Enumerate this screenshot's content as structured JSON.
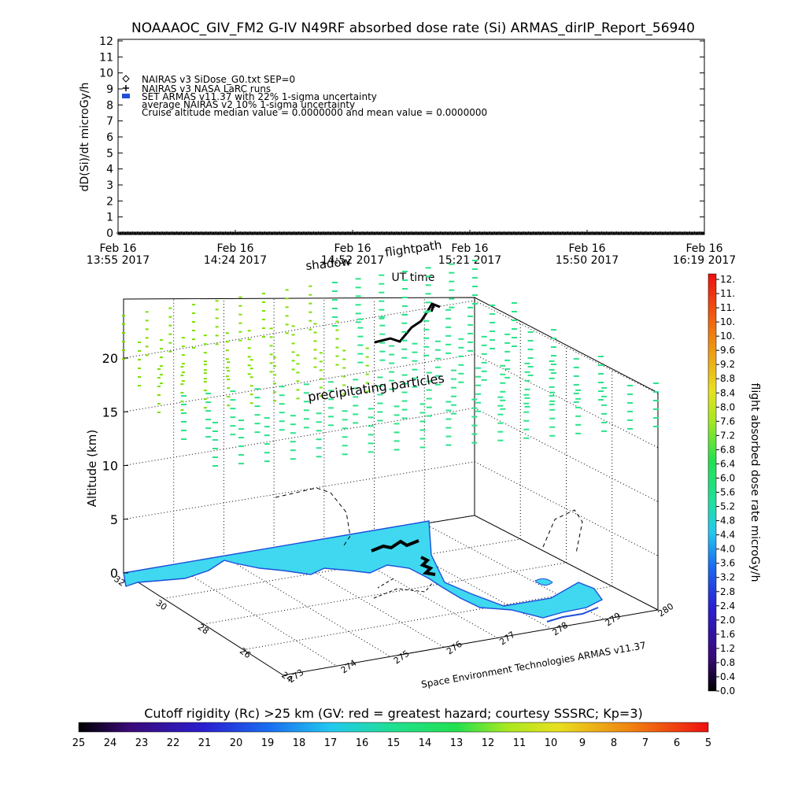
{
  "chart_data": [
    {
      "type": "line",
      "title": "NOAAAOC_GIV_FM2 G-IV   N49RF  absorbed dose rate (Si) ARMAS_dirIP_Report_56940",
      "ylabel": "dD(Si)/dt microGy/h",
      "xlabel": "UT time",
      "ylim": [
        0,
        12
      ],
      "yticks": [
        "0",
        "1",
        "2",
        "3",
        "4",
        "5",
        "6",
        "7",
        "8",
        "9",
        "10",
        "11",
        "12"
      ],
      "xtick_dates": [
        "Feb 16",
        "Feb 16",
        "Feb 16",
        "Feb 16",
        "Feb 16",
        "Feb 16"
      ],
      "xtick_times": [
        "13:55 2017",
        "14:24 2017",
        "14:52 2017",
        "15:21 2017",
        "15:50 2017",
        "16:19 2017"
      ],
      "legend": [
        "NAIRAS v3 SiDose_G0.txt SEP=0",
        "NAIRAS v3 NASA LaRC runs",
        "SET ARMAS v11.37 with 22% 1-sigma uncertainty",
        "average NAIRAS v2 10% 1-sigma uncertainty",
        "Cruise altitude median value = 0.0000000 and mean value = 0.0000000"
      ],
      "legend_placement": "top-left",
      "series": [
        {
          "name": "SET ARMAS v11.37 with 22% 1-sigma uncertainty",
          "x_minutes_range": [
            0,
            144
          ],
          "values_constant": 0
        },
        {
          "name": "NAIRAS v3 SiDose_G0.txt SEP=0",
          "x_minutes_range": [
            0,
            144
          ],
          "values_constant": 0
        }
      ]
    },
    {
      "type": "scatter",
      "zlabel": "Altitude (km)",
      "zticks": [
        "0",
        "5",
        "10",
        "15",
        "20"
      ],
      "lat_ticks": [
        "32",
        "30",
        "28",
        "26",
        "24"
      ],
      "lon_ticks": [
        "273",
        "274",
        "275",
        "276",
        "277",
        "278",
        "279",
        "280"
      ],
      "annotations": [
        "shadow",
        "flightpath",
        "precipitating particles",
        "Space Environment Technologies ARMAS v11.37"
      ],
      "colorbar_label": "flight absorbed dose rate microGy/h",
      "colorbar_ticks": [
        "12.",
        "11.",
        "11.",
        "10.",
        "10.",
        "9.6",
        "9.2",
        "8.8",
        "8.4",
        "8.0",
        "7.6",
        "7.2",
        "6.8",
        "6.4",
        "6.0",
        "5.6",
        "5.2",
        "4.8",
        "4.4",
        "4.0",
        "3.6",
        "3.2",
        "2.8",
        "2.4",
        "2.0",
        "1.6",
        "1.2",
        "0.8",
        "0.4",
        "0.0"
      ],
      "bottom_colorbar_title": "Cutoff rigidity (Rc) >25 km (GV: red = greatest hazard; courtesy SSSRC; Kp=3)",
      "bottom_colorbar_ticks": [
        "25",
        "24",
        "23",
        "22",
        "21",
        "20",
        "19",
        "18",
        "17",
        "16",
        "15",
        "14",
        "13",
        "12",
        "11",
        "10",
        "9",
        "8",
        "7",
        "6",
        "5"
      ],
      "colors": {
        "land": "#3fd8f0",
        "coast": "#1f4fd8",
        "particles_upper": "#7be000",
        "particles_lower": "#2be38a"
      }
    }
  ]
}
